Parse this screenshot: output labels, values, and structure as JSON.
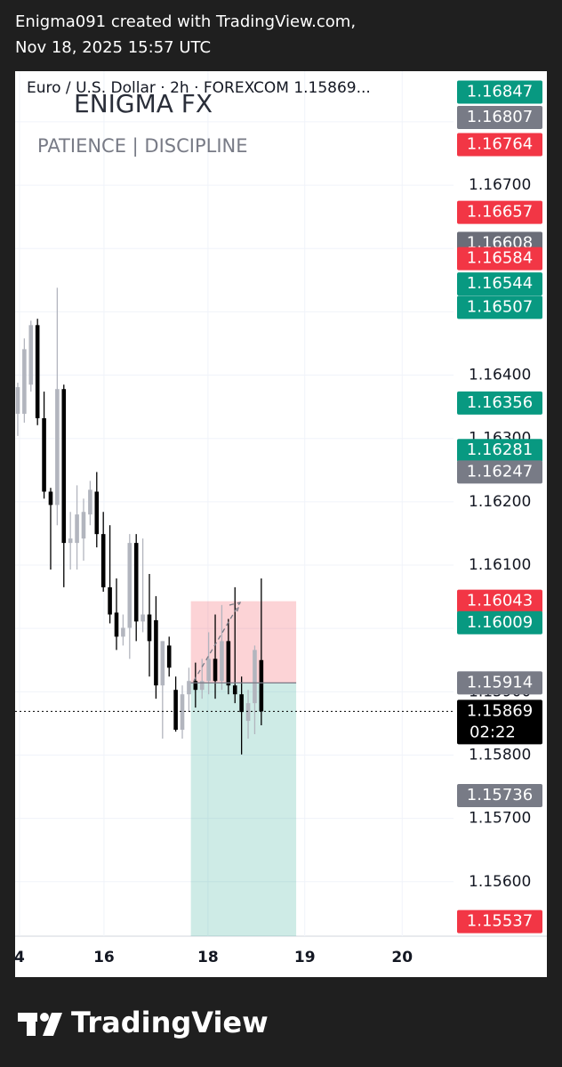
{
  "header": {
    "line1": "Enigma091 created with TradingView.com,",
    "line2": "Nov 18, 2025 15:57 UTC"
  },
  "footer": {
    "brand": "TradingView"
  },
  "chart_data": {
    "type": "candlestick",
    "legend": "Euro / U.S. Dollar · 2h · FOREXCOM  1.15869...",
    "watermark": {
      "title": "ENIGMA FX",
      "subtitle": "PATIENCE  |  DISCIPLINE"
    },
    "up_color": "#b2b5be",
    "down_color": "#000000",
    "open": [
      1.16339,
      1.16339,
      1.16385,
      1.16479,
      1.16332,
      1.16216,
      1.16195,
      1.16378,
      1.16135,
      1.16135,
      1.16142,
      1.1618,
      1.16216,
      1.16149,
      1.16065,
      1.16025,
      1.15987,
      1.16001,
      1.16135,
      1.16011,
      1.16022,
      1.16013,
      1.1591,
      1.15973,
      1.15903,
      1.1584,
      1.15896,
      1.15917,
      1.15903,
      1.15917,
      1.15952,
      1.15917,
      1.1598,
      1.1591,
      1.15896,
      1.15854,
      1.15882,
      1.1595
    ],
    "high": [
      1.16388,
      1.16458,
      1.16486,
      1.16489,
      1.16374,
      1.16222,
      1.16538,
      1.16385,
      1.16184,
      1.16226,
      1.16205,
      1.16233,
      1.16247,
      1.16184,
      1.16163,
      1.16079,
      1.16022,
      1.16149,
      1.16149,
      1.16142,
      1.16086,
      1.16051,
      1.1598,
      1.15987,
      1.15924,
      1.1591,
      1.15938,
      1.15946,
      1.15952,
      1.15994,
      1.16022,
      1.16037,
      1.16015,
      1.16065,
      1.15924,
      1.15903,
      1.15973,
      1.16079
    ],
    "low": [
      1.16304,
      1.16325,
      1.16374,
      1.16321,
      1.16205,
      1.16093,
      1.16163,
      1.16065,
      1.16093,
      1.16093,
      1.16107,
      1.16163,
      1.16128,
      1.16058,
      1.16008,
      1.15966,
      1.15973,
      1.15952,
      1.1598,
      1.15994,
      1.15924,
      1.15889,
      1.15826,
      1.15924,
      1.15837,
      1.15826,
      1.15868,
      1.15875,
      1.15889,
      1.15896,
      1.15889,
      1.15903,
      1.15896,
      1.15882,
      1.15801,
      1.15826,
      1.15833,
      1.15847
    ],
    "close": [
      1.16381,
      1.16441,
      1.16479,
      1.16332,
      1.16216,
      1.16195,
      1.16378,
      1.16135,
      1.16142,
      1.1618,
      1.16184,
      1.16219,
      1.16149,
      1.16065,
      1.16022,
      1.15987,
      1.16001,
      1.16135,
      1.16011,
      1.16022,
      1.1598,
      1.1591,
      1.1598,
      1.15938,
      1.1584,
      1.15896,
      1.15917,
      1.15903,
      1.15917,
      1.15952,
      1.15917,
      1.1598,
      1.1591,
      1.15896,
      1.15868,
      1.15882,
      1.15966,
      1.15869
    ],
    "xlim": [
      -0.4,
      66.2
    ],
    "xticks": [
      {
        "value": 0.27,
        "label": "4"
      },
      {
        "value": 13.1,
        "label": "16"
      },
      {
        "value": 28.9,
        "label": "18"
      },
      {
        "value": 43.6,
        "label": "19"
      },
      {
        "value": 58.4,
        "label": "20"
      }
    ],
    "ylim": [
      1.15514,
      1.1688
    ],
    "yticks": [
      {
        "value": 1.156,
        "label": "1.15600"
      },
      {
        "value": 1.157,
        "label": "1.15700"
      },
      {
        "value": 1.158,
        "label": "1.15800"
      },
      {
        "value": 1.159,
        "label": "1.15900"
      },
      {
        "value": 1.16,
        "label": "1.16000"
      },
      {
        "value": 1.161,
        "label": "1.16100"
      },
      {
        "value": 1.162,
        "label": "1.16200"
      },
      {
        "value": 1.163,
        "label": "1.16300"
      },
      {
        "value": 1.164,
        "label": "1.16400"
      },
      {
        "value": 1.165,
        "label": "1.16500"
      },
      {
        "value": 1.166,
        "label": "1.16600"
      },
      {
        "value": 1.167,
        "label": "1.16700"
      },
      {
        "value": 1.168,
        "label": "1.16800"
      }
    ],
    "grid": true,
    "position": {
      "start": 26.3,
      "end": 42.3,
      "entry": 1.15914,
      "stop": 1.16043,
      "stop_color": "rgba(242,54,69,0.22)",
      "target_color": "rgba(8,153,129,0.2)"
    },
    "price_labels": [
      {
        "value": 1.16847,
        "color": "#089981"
      },
      {
        "value": 1.16807,
        "color": "#787b86"
      },
      {
        "value": 1.16764,
        "color": "#f23645"
      },
      {
        "value": 1.16657,
        "color": "#f23645"
      },
      {
        "value": 1.16608,
        "color": "#6a6d78"
      },
      {
        "value": 1.16584,
        "color": "#f23645"
      },
      {
        "value": 1.16544,
        "color": "#089981"
      },
      {
        "value": 1.16507,
        "color": "#089981"
      },
      {
        "value": 1.16356,
        "color": "#089981"
      },
      {
        "value": 1.16281,
        "color": "#089981"
      },
      {
        "value": 1.16247,
        "color": "#787b86"
      },
      {
        "value": 1.16043,
        "color": "#f23645"
      },
      {
        "value": 1.16009,
        "color": "#089981"
      },
      {
        "value": 1.15914,
        "color": "#787b86"
      },
      {
        "value": 1.15736,
        "color": "#787b86"
      },
      {
        "value": 1.15537,
        "color": "#f23645"
      }
    ],
    "last_price": {
      "value": 1.15869,
      "countdown": "02:22",
      "color": "#000000"
    }
  }
}
